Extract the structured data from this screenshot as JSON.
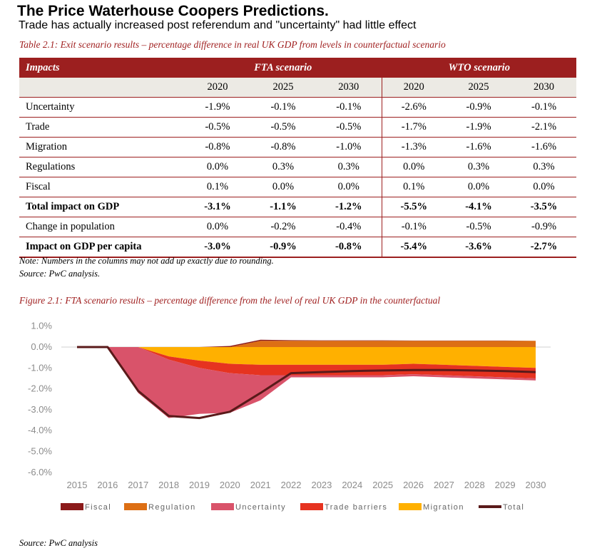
{
  "title": "The Price Waterhouse Coopers Predictions.",
  "subtitle": "Trade has actually increased post referendum and \"uncertainty\" had little effect",
  "table": {
    "caption": "Table 2.1: Exit scenario results – percentage difference in real UK GDP from levels in counterfactual scenario",
    "header": [
      "Impacts",
      "FTA scenario",
      "WTO scenario"
    ],
    "years": [
      "2020",
      "2025",
      "2030",
      "2020",
      "2025",
      "2030"
    ],
    "rows": [
      {
        "label": "Uncertainty",
        "values": [
          "-1.9%",
          "-0.1%",
          "-0.1%",
          "-2.6%",
          "-0.9%",
          "-0.1%"
        ],
        "bold": false
      },
      {
        "label": "Trade",
        "values": [
          "-0.5%",
          "-0.5%",
          "-0.5%",
          "-1.7%",
          "-1.9%",
          "-2.1%"
        ],
        "bold": false
      },
      {
        "label": "Migration",
        "values": [
          "-0.8%",
          "-0.8%",
          "-1.0%",
          "-1.3%",
          "-1.6%",
          "-1.6%"
        ],
        "bold": false
      },
      {
        "label": "Regulations",
        "values": [
          "0.0%",
          "0.3%",
          "0.3%",
          "0.0%",
          "0.3%",
          "0.3%"
        ],
        "bold": false
      },
      {
        "label": "Fiscal",
        "values": [
          "0.1%",
          "0.0%",
          "0.0%",
          "0.1%",
          "0.0%",
          "0.0%"
        ],
        "bold": false
      },
      {
        "label": "Total impact on GDP",
        "values": [
          "-3.1%",
          "-1.1%",
          "-1.2%",
          "-5.5%",
          "-4.1%",
          "-3.5%"
        ],
        "bold": true
      },
      {
        "label": "Change in population",
        "values": [
          "0.0%",
          "-0.2%",
          "-0.4%",
          "-0.1%",
          "-0.5%",
          "-0.9%"
        ],
        "bold": false
      },
      {
        "label": "Impact on GDP per capita",
        "values": [
          "-3.0%",
          "-0.9%",
          "-0.8%",
          "-5.4%",
          "-3.6%",
          "-2.7%"
        ],
        "bold": true
      }
    ],
    "note": "Note: Numbers in the columns may not add up exactly due to rounding.",
    "source": "Source: PwC analysis."
  },
  "figure": {
    "caption": "Figure 2.1: FTA scenario results – percentage difference from the level of real UK GDP in the counterfactual",
    "source": "Source: PwC analysis"
  },
  "chart_data": {
    "type": "area",
    "title": "Figure 2.1: FTA scenario results – percentage difference from the level of real UK GDP in the counterfactual",
    "x": [
      2015,
      2016,
      2017,
      2018,
      2019,
      2020,
      2021,
      2022,
      2023,
      2024,
      2025,
      2026,
      2027,
      2028,
      2029,
      2030
    ],
    "ylim": [
      -6.0,
      1.0
    ],
    "yticks": [
      1.0,
      0.0,
      -1.0,
      -2.0,
      -3.0,
      -4.0,
      -5.0,
      -6.0
    ],
    "ytick_labels": [
      "1.0%",
      "0.0%",
      "-1.0%",
      "-2.0%",
      "-3.0%",
      "-4.0%",
      "-5.0%",
      "-6.0%"
    ],
    "legend_position": "bottom",
    "grid": false,
    "stacking": "positive components stack above zero; negative components stack below zero in order Migration, Trade barriers, Uncertainty",
    "series": [
      {
        "name": "Fiscal",
        "color": "#8b1a1a",
        "kind": "area",
        "values": [
          0,
          0,
          0,
          0,
          0,
          0.05,
          0.05,
          0.03,
          0.02,
          0.02,
          0.02,
          0.01,
          0.01,
          0.01,
          0.01,
          0.0
        ]
      },
      {
        "name": "Regulation",
        "color": "#dd6f14",
        "kind": "area",
        "values": [
          0,
          0,
          0,
          0,
          0,
          0.0,
          0.3,
          0.3,
          0.3,
          0.3,
          0.3,
          0.3,
          0.3,
          0.3,
          0.3,
          0.3
        ]
      },
      {
        "name": "Uncertainty",
        "color": "#d9536a",
        "kind": "area",
        "values": [
          0,
          0,
          -2.2,
          -2.8,
          -2.2,
          -1.9,
          -1.2,
          -0.1,
          -0.1,
          -0.1,
          -0.1,
          -0.1,
          -0.1,
          -0.1,
          -0.1,
          -0.1
        ]
      },
      {
        "name": "Trade barriers",
        "color": "#e63320",
        "kind": "area",
        "values": [
          0,
          0,
          0,
          -0.15,
          -0.35,
          -0.45,
          -0.5,
          -0.5,
          -0.5,
          -0.5,
          -0.5,
          -0.5,
          -0.5,
          -0.5,
          -0.5,
          -0.5
        ]
      },
      {
        "name": "Migration",
        "color": "#ffb000",
        "kind": "area",
        "values": [
          0,
          0,
          0,
          -0.45,
          -0.65,
          -0.8,
          -0.85,
          -0.85,
          -0.85,
          -0.85,
          -0.85,
          -0.8,
          -0.85,
          -0.9,
          -0.95,
          -1.0
        ]
      },
      {
        "name": "Total",
        "color": "#5a1a1a",
        "kind": "line",
        "values": [
          0,
          0,
          -2.1,
          -3.3,
          -3.4,
          -3.1,
          -2.2,
          -1.25,
          -1.2,
          -1.15,
          -1.12,
          -1.1,
          -1.1,
          -1.12,
          -1.15,
          -1.2
        ]
      }
    ]
  }
}
